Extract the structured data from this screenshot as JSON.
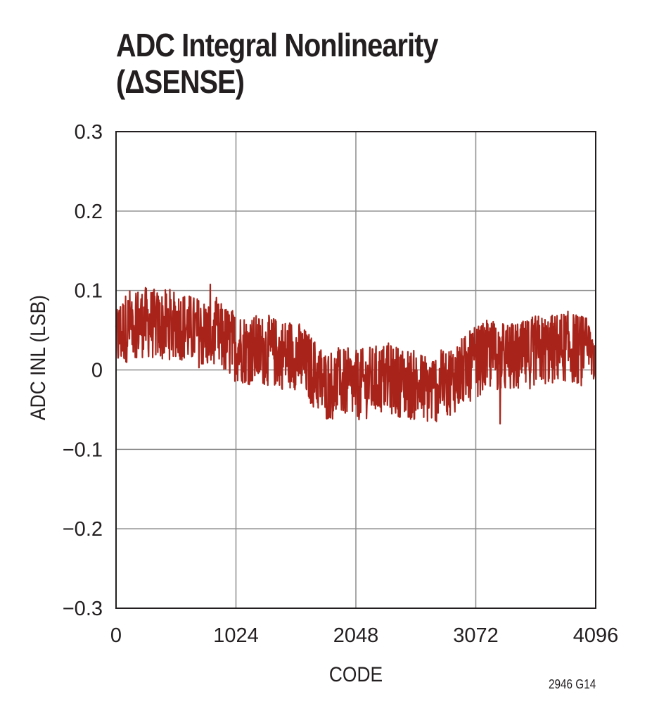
{
  "chart_data": {
    "type": "line",
    "title_line1": "ADC Integral Nonlinearity",
    "title_line2": "(ΔSENSE)",
    "xlabel": "CODE",
    "ylabel": "ADC INL (LSB)",
    "xlim": [
      0,
      4096
    ],
    "ylim": [
      -0.3,
      0.3
    ],
    "x_ticks": [
      0,
      1024,
      2048,
      3072,
      4096
    ],
    "x_tick_labels": [
      "0",
      "1024",
      "2048",
      "3072",
      "4096"
    ],
    "y_ticks": [
      0.3,
      0.2,
      0.1,
      0,
      -0.1,
      -0.2,
      -0.3
    ],
    "y_tick_labels": [
      "0.3",
      "0.2",
      "0.1",
      "0",
      "−0.1",
      "−0.2",
      "−0.3"
    ],
    "grid": true,
    "series_color": "#a8241a",
    "trend": {
      "x": [
        0,
        128,
        256,
        384,
        512,
        640,
        768,
        896,
        1024,
        1152,
        1280,
        1408,
        1536,
        1664,
        1792,
        1920,
        2048,
        2176,
        2304,
        2432,
        2560,
        2688,
        2816,
        2944,
        3072,
        3200,
        3328,
        3456,
        3584,
        3712,
        3840,
        3968,
        4096
      ],
      "y": [
        0.04,
        0.06,
        0.06,
        0.055,
        0.06,
        0.05,
        0.045,
        0.04,
        0.03,
        0.025,
        0.025,
        0.02,
        0.02,
        0.0,
        -0.02,
        -0.015,
        -0.02,
        -0.015,
        -0.01,
        -0.015,
        -0.02,
        -0.025,
        -0.015,
        -0.005,
        0.01,
        0.02,
        0.015,
        0.015,
        0.025,
        0.025,
        0.03,
        0.025,
        0.02
      ],
      "noise_amplitude": 0.045
    },
    "note": "2946 G14"
  }
}
